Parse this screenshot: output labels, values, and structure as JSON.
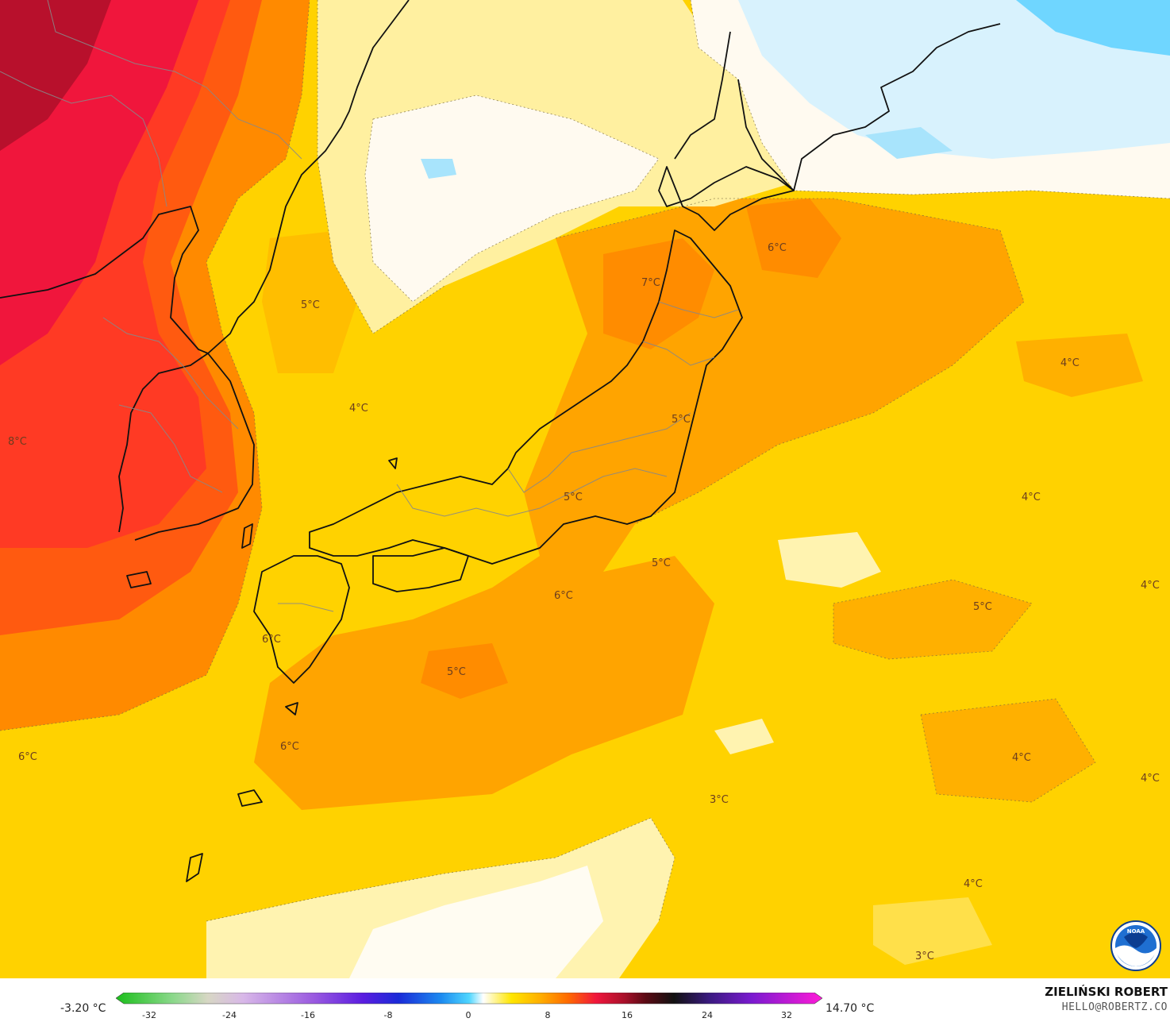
{
  "map": {
    "labels": [
      "5°C",
      "4°C",
      "7°C",
      "6°C",
      "4°C",
      "5°C",
      "8°C",
      "4°C",
      "5°C",
      "4°C",
      "5°C",
      "6°C",
      "5°C",
      "6°C",
      "5°C",
      "6°C",
      "6°C",
      "3°C",
      "4°C",
      "4°C",
      "4°C",
      "3°C"
    ]
  },
  "legend": {
    "min_label": "-3.20 °C",
    "max_label": "14.70 °C",
    "ticks": [
      "-32",
      "-24",
      "-16",
      "-8",
      "0",
      "8",
      "16",
      "24",
      "32"
    ]
  },
  "credits": {
    "author": "ZIELIŃSKI ROBERT",
    "email": "HELLO@ROBERTZ.CO",
    "logo_text": "NOAA"
  },
  "colors": {
    "cold_white": "#fffdf0",
    "pale_yellow": "#fff2a8",
    "yellow": "#ffd700",
    "yellow_orange": "#ffc000",
    "orange": "#ffa000",
    "dark_orange": "#ff7a00",
    "red_orange": "#ff4a1a",
    "red": "#f01838",
    "dark_red": "#b0102a",
    "light_blue": "#cfeefd",
    "cyan": "#6fd8ff"
  }
}
